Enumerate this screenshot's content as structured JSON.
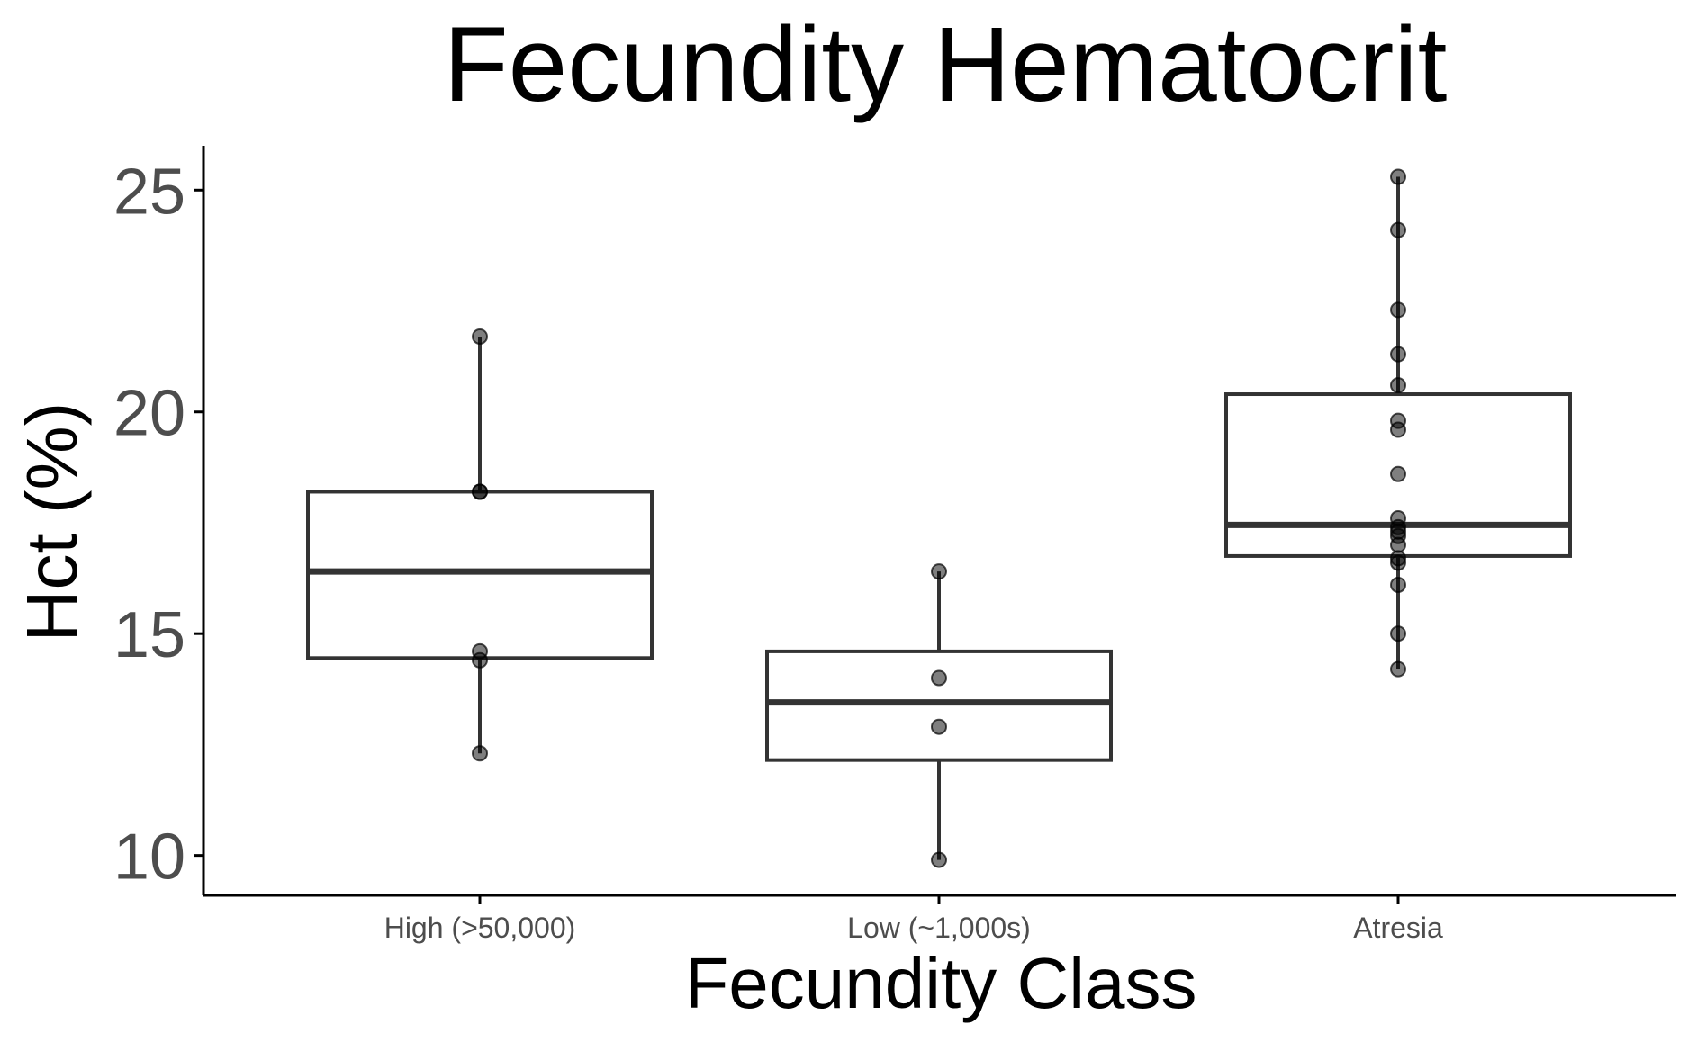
{
  "chart_data": {
    "type": "box",
    "title": "Fecundity Hematocrit",
    "xlabel": "Fecundity Class",
    "ylabel": "Hct (%)",
    "categories": [
      "High (>50,000)",
      "Low (~1,000s)",
      "Atresia"
    ],
    "ylim": [
      9.1,
      26.0
    ],
    "yticks": [
      10,
      15,
      20,
      25
    ],
    "yticklabels": [
      "10",
      "15",
      "20",
      "25"
    ],
    "grid": false,
    "legend": "none",
    "boxes": [
      {
        "category": "High (>50,000)",
        "whisker_low": 12.3,
        "q1": 14.45,
        "median": 16.4,
        "q3": 18.2,
        "whisker_high": 21.7
      },
      {
        "category": "Low (~1,000s)",
        "whisker_low": 9.9,
        "q1": 12.15,
        "median": 13.45,
        "q3": 14.6,
        "whisker_high": 16.4
      },
      {
        "category": "Atresia",
        "whisker_low": 14.2,
        "q1": 16.75,
        "median": 17.45,
        "q3": 20.4,
        "whisker_high": 25.3
      }
    ],
    "points": [
      {
        "category": "High (>50,000)",
        "values": [
          21.7,
          18.2,
          18.2,
          14.6,
          14.4,
          12.3
        ]
      },
      {
        "category": "Low (~1,000s)",
        "values": [
          16.4,
          14.0,
          12.9,
          9.9
        ]
      },
      {
        "category": "Atresia",
        "values": [
          25.3,
          24.1,
          22.3,
          21.3,
          20.6,
          19.8,
          19.6,
          18.6,
          17.6,
          17.4,
          17.3,
          17.2,
          17.0,
          16.7,
          16.6,
          16.1,
          15.0,
          14.2
        ]
      }
    ],
    "colors": {
      "box_stroke": "#333333",
      "point_fill": "#000000",
      "axis": "#000000",
      "tick_label": "#4d4d4d",
      "text": "#000000"
    }
  }
}
